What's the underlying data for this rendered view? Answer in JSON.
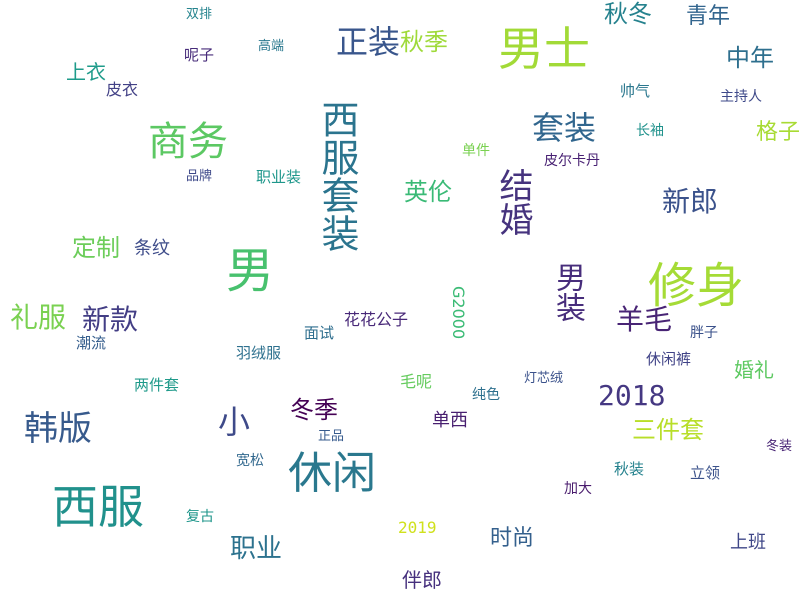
{
  "words": [
    {
      "text": "男士",
      "color": "#a2da37"
    },
    {
      "text": "西服套装",
      "color": "#2b748e"
    },
    {
      "text": "商务",
      "color": "#5cc863"
    },
    {
      "text": "男",
      "color": "#48c16e"
    },
    {
      "text": "修身",
      "color": "#a5db36"
    },
    {
      "text": "西服",
      "color": "#21918c"
    },
    {
      "text": "休闲",
      "color": "#2a788e"
    },
    {
      "text": "韩版",
      "color": "#375a8c"
    },
    {
      "text": "正装",
      "color": "#39568c"
    },
    {
      "text": "套装",
      "color": "#31668e"
    },
    {
      "text": "结婚",
      "color": "#46337e"
    },
    {
      "text": "男装",
      "color": "#472d7b"
    },
    {
      "text": "羊毛",
      "color": "#482475"
    },
    {
      "text": "新郎",
      "color": "#3b528b"
    },
    {
      "text": "礼服",
      "color": "#7ad151"
    },
    {
      "text": "新款",
      "color": "#433e85"
    },
    {
      "text": "2018",
      "color": "#453882"
    },
    {
      "text": "职业",
      "color": "#2c728e"
    },
    {
      "text": "秋冬",
      "color": "#26828e"
    },
    {
      "text": "秋季",
      "color": "#9fda3a"
    },
    {
      "text": "青年",
      "color": "#32658e"
    },
    {
      "text": "中年",
      "color": "#2e6f8e"
    },
    {
      "text": "格子",
      "color": "#a8db34"
    },
    {
      "text": "英伦",
      "color": "#3aba76"
    },
    {
      "text": "三件套",
      "color": "#b8de29"
    },
    {
      "text": "小",
      "color": "#3e4a89"
    },
    {
      "text": "冬季",
      "color": "#440154"
    },
    {
      "text": "定制",
      "color": "#6ccd5a"
    },
    {
      "text": "上衣",
      "color": "#1e9b8a"
    },
    {
      "text": "时尚",
      "color": "#34608d"
    },
    {
      "text": "2019",
      "color": "#d0e11c"
    },
    {
      "text": "G2000",
      "color": "#3bbb75"
    },
    {
      "text": "伴郎",
      "color": "#46307e"
    },
    {
      "text": "婚礼",
      "color": "#5ec962"
    },
    {
      "text": "上班",
      "color": "#3f4788"
    },
    {
      "text": "花花公子",
      "color": "#482878"
    },
    {
      "text": "单西",
      "color": "#481f70"
    },
    {
      "text": "条纹",
      "color": "#3e4c8a"
    },
    {
      "text": "皮衣",
      "color": "#424186"
    },
    {
      "text": "长袖",
      "color": "#20928c"
    },
    {
      "text": "休闲裤",
      "color": "#404387"
    },
    {
      "text": "羽绒服",
      "color": "#2d708e"
    },
    {
      "text": "职业装",
      "color": "#1f978b"
    },
    {
      "text": "毛呢",
      "color": "#65cb5e"
    },
    {
      "text": "两件套",
      "color": "#1f9a8a"
    },
    {
      "text": "帅气",
      "color": "#2a778e"
    },
    {
      "text": "主持人",
      "color": "#3e4989"
    },
    {
      "text": "胖子",
      "color": "#3b528b"
    },
    {
      "text": "面试",
      "color": "#2e6e8e"
    },
    {
      "text": "潮流",
      "color": "#355e8d"
    },
    {
      "text": "冬装",
      "color": "#482475"
    },
    {
      "text": "立领",
      "color": "#3b528b"
    },
    {
      "text": "秋装",
      "color": "#26828e"
    },
    {
      "text": "正品",
      "color": "#375b8d"
    },
    {
      "text": "单件",
      "color": "#7ad151"
    },
    {
      "text": "宽松",
      "color": "#31688e"
    },
    {
      "text": "复古",
      "color": "#1f968b"
    },
    {
      "text": "纯色",
      "color": "#2d708e"
    },
    {
      "text": "呢子",
      "color": "#472c7a"
    },
    {
      "text": "高端",
      "color": "#2a788e"
    },
    {
      "text": "双排",
      "color": "#25848e"
    },
    {
      "text": "品牌",
      "color": "#3e4989"
    },
    {
      "text": "灯芯绒",
      "color": "#3b528b"
    },
    {
      "text": "加大",
      "color": "#481a6c"
    },
    {
      "text": "皮尔卡丹",
      "color": "#482173"
    }
  ]
}
